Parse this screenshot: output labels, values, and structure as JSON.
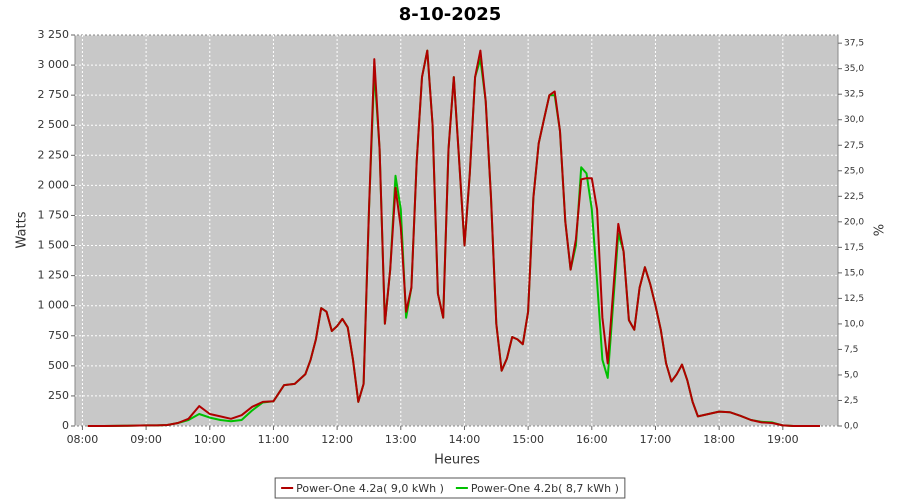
{
  "chart_data": {
    "type": "line",
    "title": "8-10-2025",
    "x_label": "Heures",
    "y_label": "Watts",
    "y2_label": "%",
    "x": [
      "08:05",
      "08:20",
      "08:40",
      "09:00",
      "09:10",
      "09:20",
      "09:30",
      "09:40",
      "09:50",
      "10:00",
      "10:10",
      "10:20",
      "10:30",
      "10:40",
      "10:50",
      "11:00",
      "11:10",
      "11:20",
      "11:30",
      "11:35",
      "11:40",
      "11:45",
      "11:50",
      "11:55",
      "12:00",
      "12:05",
      "12:10",
      "12:15",
      "12:20",
      "12:25",
      "12:30",
      "12:35",
      "12:40",
      "12:45",
      "12:50",
      "12:55",
      "13:00",
      "13:05",
      "13:10",
      "13:15",
      "13:20",
      "13:25",
      "13:30",
      "13:35",
      "13:40",
      "13:45",
      "13:50",
      "13:55",
      "14:00",
      "14:05",
      "14:10",
      "14:15",
      "14:20",
      "14:25",
      "14:30",
      "14:35",
      "14:40",
      "14:45",
      "14:50",
      "14:55",
      "15:00",
      "15:05",
      "15:10",
      "15:15",
      "15:20",
      "15:25",
      "15:30",
      "15:35",
      "15:40",
      "15:45",
      "15:50",
      "15:55",
      "16:00",
      "16:05",
      "16:10",
      "16:15",
      "16:20",
      "16:25",
      "16:30",
      "16:35",
      "16:40",
      "16:45",
      "16:50",
      "16:55",
      "17:00",
      "17:05",
      "17:10",
      "17:15",
      "17:20",
      "17:25",
      "17:30",
      "17:35",
      "17:40",
      "17:50",
      "18:00",
      "18:10",
      "18:20",
      "18:30",
      "18:40",
      "18:50",
      "19:00",
      "19:10",
      "19:20",
      "19:35"
    ],
    "series": [
      {
        "name": "Power-One 4.2a( 9,0 kWh )",
        "color": "#b00000",
        "values": [
          0,
          0,
          2,
          5,
          5,
          8,
          25,
          60,
          165,
          100,
          80,
          60,
          90,
          160,
          200,
          205,
          340,
          350,
          430,
          550,
          720,
          980,
          950,
          790,
          830,
          890,
          820,
          550,
          200,
          350,
          1800,
          3050,
          2300,
          850,
          1300,
          1980,
          1650,
          950,
          1150,
          2200,
          2900,
          3120,
          2500,
          1100,
          900,
          2300,
          2900,
          2200,
          1500,
          2100,
          2900,
          3120,
          2700,
          1900,
          850,
          460,
          560,
          740,
          720,
          680,
          950,
          1900,
          2350,
          2550,
          2750,
          2780,
          2450,
          1700,
          1300,
          1550,
          2050,
          2060,
          2060,
          1800,
          900,
          520,
          1100,
          1680,
          1450,
          880,
          800,
          1150,
          1320,
          1180,
          1000,
          800,
          520,
          370,
          430,
          510,
          380,
          200,
          80,
          100,
          120,
          115,
          85,
          50,
          30,
          25,
          5,
          0,
          0,
          0
        ]
      },
      {
        "name": "Power-One 4.2b( 8,7 kWh )",
        "color": "#00c000",
        "values": [
          0,
          0,
          2,
          5,
          5,
          8,
          25,
          50,
          100,
          70,
          50,
          40,
          50,
          130,
          195,
          205,
          340,
          350,
          430,
          550,
          720,
          980,
          950,
          790,
          830,
          890,
          820,
          550,
          200,
          350,
          1800,
          2950,
          2300,
          850,
          1300,
          2080,
          1800,
          900,
          1150,
          2200,
          2900,
          3120,
          2500,
          1100,
          900,
          2300,
          2900,
          2200,
          1500,
          2100,
          2900,
          3050,
          2700,
          1900,
          850,
          460,
          560,
          740,
          720,
          680,
          950,
          1900,
          2350,
          2550,
          2750,
          2750,
          2450,
          1700,
          1300,
          1500,
          2150,
          2100,
          1800,
          1200,
          550,
          400,
          1000,
          1600,
          1450,
          880,
          800,
          1150,
          1320,
          1180,
          1000,
          800,
          520,
          370,
          430,
          510,
          380,
          200,
          80,
          100,
          120,
          115,
          85,
          50,
          35,
          30,
          5,
          0,
          0,
          0
        ]
      }
    ],
    "xlim": [
      "07:53",
      "19:52"
    ],
    "xticks": [
      "08:00",
      "09:00",
      "10:00",
      "11:00",
      "12:00",
      "13:00",
      "14:00",
      "15:00",
      "16:00",
      "17:00",
      "18:00",
      "19:00"
    ],
    "ylim": [
      0,
      3250
    ],
    "yticks": [
      0,
      {
        "value": 250,
        "label": "250"
      },
      {
        "value": 500,
        "label": "500"
      },
      {
        "value": 750,
        "label": "750"
      },
      {
        "value": 1000,
        "label": "1 000"
      },
      {
        "value": 1250,
        "label": "1 250"
      },
      {
        "value": 1500,
        "label": "1 500"
      },
      {
        "value": 1750,
        "label": "1 750"
      },
      {
        "value": 2000,
        "label": "2 000"
      },
      {
        "value": 2250,
        "label": "2 250"
      },
      {
        "value": 2500,
        "label": "2 500"
      },
      {
        "value": 2750,
        "label": "2 750"
      },
      {
        "value": 3000,
        "label": "3 000"
      },
      {
        "value": 3250,
        "label": "3 250"
      }
    ],
    "y2lim": [
      0,
      38.3
    ],
    "y2ticks": [
      {
        "value": 0,
        "label": "0,0"
      },
      {
        "value": 2.5,
        "label": "2,5"
      },
      {
        "value": 5,
        "label": "5,0"
      },
      {
        "value": 7.5,
        "label": "7,5"
      },
      {
        "value": 10,
        "label": "10,0"
      },
      {
        "value": 12.5,
        "label": "12,5"
      },
      {
        "value": 15,
        "label": "15,0"
      },
      {
        "value": 17.5,
        "label": "17,5"
      },
      {
        "value": 20,
        "label": "20,0"
      },
      {
        "value": 22.5,
        "label": "22,5"
      },
      {
        "value": 25,
        "label": "25,0"
      },
      {
        "value": 27.5,
        "label": "27,5"
      },
      {
        "value": 30,
        "label": "30,0"
      },
      {
        "value": 32.5,
        "label": "32,5"
      },
      {
        "value": 35,
        "label": "35,0"
      },
      {
        "value": 37.5,
        "label": "37,5"
      }
    ],
    "grid": true,
    "legend": "bottom"
  }
}
